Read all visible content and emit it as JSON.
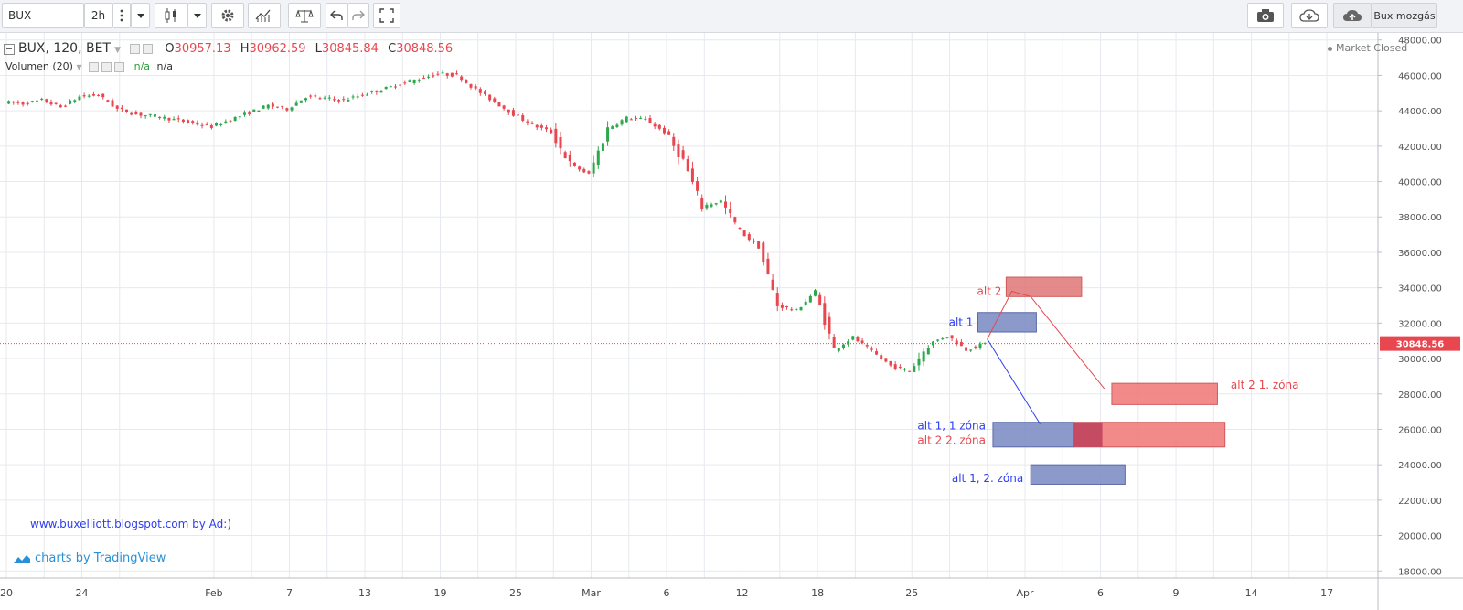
{
  "toolbar": {
    "symbol": "BUX",
    "interval": "2h",
    "layout_name": "Bux mozgás"
  },
  "legend": {
    "title": "BUX, 120, BET",
    "o_label": "O",
    "o_value": "30957.13",
    "h_label": "H",
    "h_value": "30962.59",
    "l_label": "L",
    "l_value": "30845.84",
    "c_label": "C",
    "c_value": "30848.56",
    "volume_label": "Volumen (20)",
    "volume_v1": "n/a",
    "volume_v2": "n/a"
  },
  "market_status": "Market Closed",
  "watermark_url": "www.buxelliott.blogspot.com by Ad:)",
  "credit": "charts by TradingView",
  "colors": {
    "up": "#2ba84a",
    "down": "#e8474f",
    "blue_zone": "#7c8cc4",
    "red_zone": "#f07a7a",
    "overlap": "#c0445e",
    "last_price_tag": "#e8474f"
  },
  "chart_data": {
    "type": "candlestick",
    "ylim": [
      17600,
      48400
    ],
    "y_ticks": [
      18000,
      20000,
      22000,
      24000,
      26000,
      28000,
      30000,
      30848.56,
      32000,
      34000,
      36000,
      38000,
      40000,
      42000,
      44000,
      46000,
      48000
    ],
    "y_tick_labels": [
      "18000.00",
      "20000.00",
      "22000.00",
      "24000.00",
      "26000.00",
      "28000.00",
      "30000.00",
      "30848.56",
      "32000.00",
      "34000.00",
      "36000.00",
      "38000.00",
      "40000.00",
      "42000.00",
      "44000.00",
      "46000.00",
      "48000.00"
    ],
    "last_price": 30848.56,
    "last_price_label": "30848.56",
    "x_ticks": [
      {
        "label": "20",
        "pos": 0
      },
      {
        "label": "24",
        "pos": 4
      },
      {
        "label": "Feb",
        "pos": 11
      },
      {
        "label": "7",
        "pos": 15
      },
      {
        "label": "13",
        "pos": 19
      },
      {
        "label": "19",
        "pos": 23
      },
      {
        "label": "25",
        "pos": 27
      },
      {
        "label": "Mar",
        "pos": 31
      },
      {
        "label": "6",
        "pos": 35
      },
      {
        "label": "12",
        "pos": 39
      },
      {
        "label": "18",
        "pos": 43
      },
      {
        "label": "25",
        "pos": 48
      },
      {
        "label": "Apr",
        "pos": 54
      },
      {
        "label": "6",
        "pos": 58
      },
      {
        "label": "9",
        "pos": 62
      },
      {
        "label": "14",
        "pos": 66
      },
      {
        "label": "17",
        "pos": 70
      }
    ],
    "x_grid_positions": [
      0,
      2,
      4,
      6,
      11,
      13,
      15,
      17,
      19,
      21,
      23,
      25,
      27,
      29,
      31,
      33,
      35,
      37,
      39,
      41,
      43,
      45,
      48,
      50,
      52,
      54,
      56,
      58,
      60,
      62,
      64,
      66,
      68,
      70
    ],
    "path_closes": [
      [
        0,
        44500
      ],
      [
        1,
        44400
      ],
      [
        2,
        44600
      ],
      [
        3,
        44200
      ],
      [
        4,
        44800
      ],
      [
        5,
        44900
      ],
      [
        6,
        44100
      ],
      [
        7,
        43800
      ],
      [
        8,
        43700
      ],
      [
        9,
        43500
      ],
      [
        10,
        43300
      ],
      [
        11,
        43100
      ],
      [
        12,
        43500
      ],
      [
        13,
        43900
      ],
      [
        14,
        44300
      ],
      [
        15,
        44100
      ],
      [
        16,
        44800
      ],
      [
        17,
        44700
      ],
      [
        18,
        44600
      ],
      [
        19,
        44900
      ],
      [
        20,
        45200
      ],
      [
        21,
        45500
      ],
      [
        22,
        45800
      ],
      [
        23,
        46100
      ],
      [
        24,
        46000
      ],
      [
        25,
        45200
      ],
      [
        26,
        44500
      ],
      [
        27,
        43800
      ],
      [
        28,
        43200
      ],
      [
        29,
        42800
      ],
      [
        30,
        41000
      ],
      [
        31,
        40400
      ],
      [
        32,
        43000
      ],
      [
        33,
        43600
      ],
      [
        34,
        43500
      ],
      [
        35,
        42800
      ],
      [
        36,
        41200
      ],
      [
        37,
        38600
      ],
      [
        38,
        38900
      ],
      [
        39,
        37200
      ],
      [
        40,
        36300
      ],
      [
        41,
        33000
      ],
      [
        42,
        32700
      ],
      [
        43,
        33800
      ],
      [
        44,
        30500
      ],
      [
        45,
        31200
      ],
      [
        46,
        30400
      ],
      [
        47,
        29600
      ],
      [
        48,
        29300
      ],
      [
        49,
        30800
      ],
      [
        50,
        31300
      ],
      [
        51,
        30500
      ],
      [
        52,
        30849
      ]
    ],
    "series": [
      {
        "name": "alt 1",
        "color": "#7c8cc4",
        "projection": [
          [
            52,
            31100
          ],
          [
            54.8,
            26300
          ]
        ]
      },
      {
        "name": "alt 2",
        "color": "#e8474f",
        "projection": [
          [
            52,
            31100
          ],
          [
            53.3,
            33800
          ],
          [
            54.3,
            33500
          ],
          [
            58.2,
            28300
          ]
        ]
      }
    ],
    "zones": [
      {
        "label": "alt 2",
        "x_from": 53,
        "x_to": 57,
        "y_from": 33500,
        "y_to": 34600,
        "color": "#e07a7a",
        "label_color": "#e8474f"
      },
      {
        "label": "alt 1",
        "x_from": 51.5,
        "x_to": 54.6,
        "y_from": 31500,
        "y_to": 32600,
        "color": "#7c8cc4",
        "label_color": "#2d3ef0"
      },
      {
        "label": "alt 2 1. zóna",
        "x_from": 58.6,
        "x_to": 64.2,
        "y_from": 27400,
        "y_to": 28600,
        "color": "#f07a7a",
        "label_color": "#e8474f"
      },
      {
        "label": "alt 1, 1 zóna",
        "x_from": 52.3,
        "x_to": 56.6,
        "y_from": 25000,
        "y_to": 26400,
        "color": "#7c8cc4",
        "label_color": "#2d3ef0"
      },
      {
        "label": "alt 2 2. zóna",
        "x_from": 56.6,
        "x_to": 64.6,
        "y_from": 25000,
        "y_to": 26400,
        "color": "#f07a7a",
        "label_color": "#e8474f"
      },
      {
        "label": "alt 1, 2. zóna",
        "x_from": 54.3,
        "x_to": 59.3,
        "y_from": 22900,
        "y_to": 24000,
        "color": "#7c8cc4",
        "label_color": "#2d3ef0"
      }
    ]
  }
}
